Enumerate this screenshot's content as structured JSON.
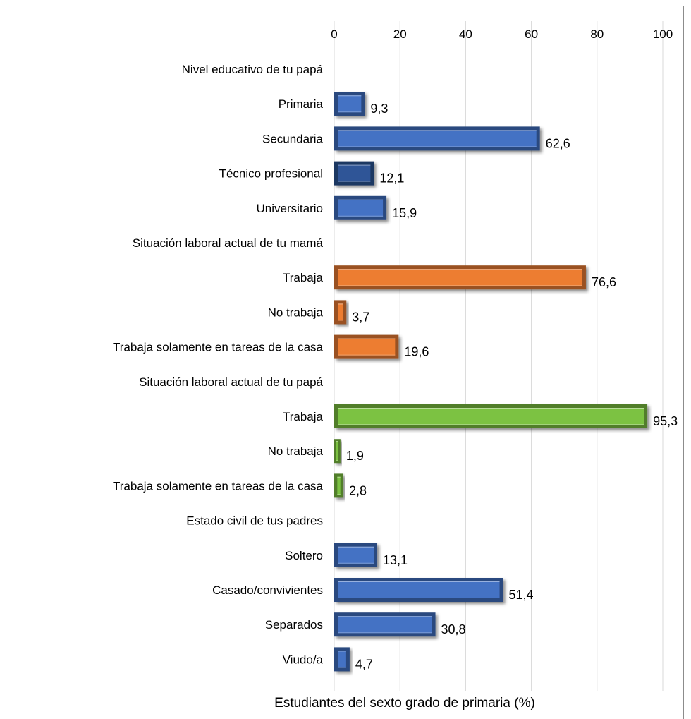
{
  "chart_data": {
    "type": "bar",
    "orientation": "horizontal",
    "xlabel": "Estudiantes del sexto grado de primaria (%)",
    "xlim": [
      0,
      100
    ],
    "x_ticks": [
      0,
      20,
      40,
      60,
      80,
      100
    ],
    "x_axis_position": "top",
    "grid": true,
    "legend": "none",
    "groups": [
      {
        "title": "Nivel educativo de tu papá",
        "color": "#4472c4",
        "items": [
          {
            "label": "Primaria",
            "value": 9.3,
            "display": "9,3"
          },
          {
            "label": "Secundaria",
            "value": 62.6,
            "display": "62,6"
          },
          {
            "label": "Técnico profesional",
            "value": 12.1,
            "display": "12,1",
            "color": "#2f5597"
          },
          {
            "label": "Universitario",
            "value": 15.9,
            "display": "15,9"
          }
        ]
      },
      {
        "title": "Situación laboral actual de tu mamá",
        "color": "#ed7d31",
        "items": [
          {
            "label": "Trabaja",
            "value": 76.6,
            "display": "76,6"
          },
          {
            "label": "No trabaja",
            "value": 3.7,
            "display": "3,7"
          },
          {
            "label": "Trabaja solamente en tareas de la casa",
            "value": 19.6,
            "display": "19,6"
          }
        ]
      },
      {
        "title": "Situación laboral actual de tu papá",
        "color": "#7cc242",
        "items": [
          {
            "label": "Trabaja",
            "value": 95.3,
            "display": "95,3"
          },
          {
            "label": "No trabaja",
            "value": 1.9,
            "display": "1,9"
          },
          {
            "label": "Trabaja solamente en tareas de la casa",
            "value": 2.8,
            "display": "2,8"
          }
        ]
      },
      {
        "title": "Estado civil de tus padres",
        "color": "#4472c4",
        "items": [
          {
            "label": "Soltero",
            "value": 13.1,
            "display": "13,1"
          },
          {
            "label": "Casado/convivientes",
            "value": 51.4,
            "display": "51,4"
          },
          {
            "label": "Separados",
            "value": 30.8,
            "display": "30,8"
          },
          {
            "label": "Viudo/a",
            "value": 4.7,
            "display": "4,7"
          }
        ]
      }
    ]
  }
}
